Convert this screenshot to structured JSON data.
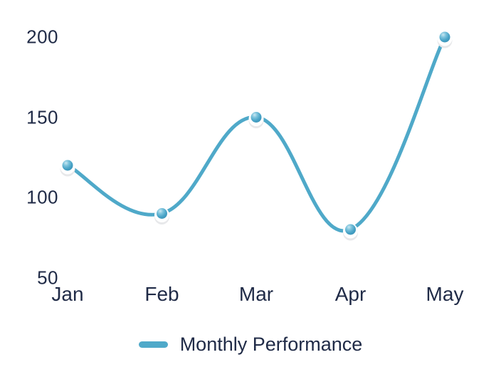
{
  "chart_data": {
    "type": "line",
    "categories": [
      "Jan",
      "Feb",
      "Mar",
      "Apr",
      "May"
    ],
    "series": [
      {
        "name": "Monthly Performance",
        "values": [
          120,
          90,
          150,
          80,
          200
        ]
      }
    ],
    "yticks": [
      200,
      150,
      100,
      50
    ],
    "ylim": [
      50,
      200
    ],
    "grid": false,
    "smooth": true,
    "legend_position": "bottom",
    "title": "",
    "xlabel": "",
    "ylabel": "",
    "colors": {
      "line": "#4FA9C9",
      "marker": "#47A2C6",
      "marker_highlight": "#C9E7F2",
      "marker_mid": "#7CC3DC",
      "marker_dark": "#3A90B4",
      "marker_ring": "#FFFFFF",
      "marker_shadow": "#E7E8EA",
      "text": "#202B47",
      "background": "#FFFFFF"
    }
  }
}
